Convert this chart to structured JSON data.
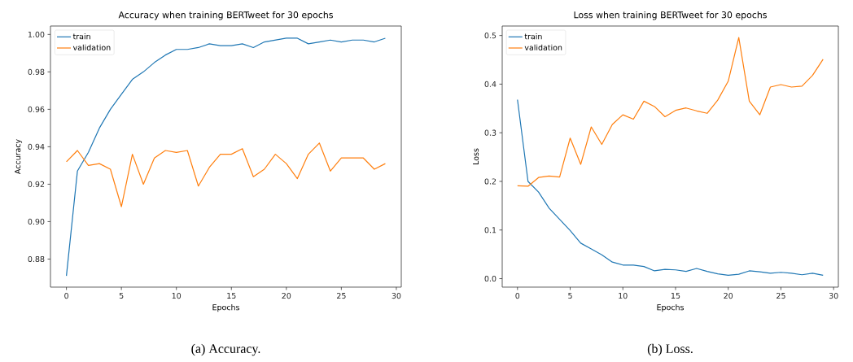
{
  "chart_data": [
    {
      "type": "line",
      "title": "Accuracy when training BERTweet for 30 epochs",
      "xlabel": "Epochs",
      "ylabel": "Accuracy",
      "legend": "top left",
      "x": [
        0,
        1,
        2,
        3,
        4,
        5,
        6,
        7,
        8,
        9,
        10,
        11,
        12,
        13,
        14,
        15,
        16,
        17,
        18,
        19,
        20,
        21,
        22,
        23,
        24,
        25,
        26,
        27,
        28,
        29
      ],
      "series": [
        {
          "name": "train",
          "color": "#1f77b4",
          "values": [
            0.871,
            0.927,
            0.937,
            0.95,
            0.96,
            0.968,
            0.976,
            0.98,
            0.985,
            0.989,
            0.992,
            0.992,
            0.993,
            0.995,
            0.994,
            0.994,
            0.995,
            0.993,
            0.996,
            0.997,
            0.998,
            0.998,
            0.995,
            0.996,
            0.997,
            0.996,
            0.997,
            0.997,
            0.996,
            0.998
          ]
        },
        {
          "name": "validation",
          "color": "#ff7f0e",
          "values": [
            0.932,
            0.938,
            0.93,
            0.931,
            0.928,
            0.908,
            0.936,
            0.92,
            0.934,
            0.938,
            0.937,
            0.938,
            0.919,
            0.929,
            0.936,
            0.936,
            0.939,
            0.924,
            0.928,
            0.936,
            0.931,
            0.923,
            0.936,
            0.942,
            0.927,
            0.934,
            0.934,
            0.934,
            0.928,
            0.931
          ]
        }
      ],
      "xlim": [
        -1.45,
        30.45
      ],
      "ylim": [
        0.865,
        1.0045
      ],
      "xticks": [
        0,
        5,
        10,
        15,
        20,
        25,
        30
      ],
      "yticks": [
        {
          "value": 0.88,
          "label": "0.88"
        },
        {
          "value": 0.9,
          "label": "0.90"
        },
        {
          "value": 0.92,
          "label": "0.92"
        },
        {
          "value": 0.94,
          "label": "0.94"
        },
        {
          "value": 0.96,
          "label": "0.96"
        },
        {
          "value": 0.98,
          "label": "0.98"
        },
        {
          "value": 1.0,
          "label": "1.00"
        }
      ],
      "annotations": [
        "(a) Accuracy."
      ]
    },
    {
      "type": "line",
      "title": "Loss when training BERTweet for 30 epochs",
      "xlabel": "Epochs",
      "ylabel": "Loss",
      "legend": "top left",
      "x": [
        0,
        1,
        2,
        3,
        4,
        5,
        6,
        7,
        8,
        9,
        10,
        11,
        12,
        13,
        14,
        15,
        16,
        17,
        18,
        19,
        20,
        21,
        22,
        23,
        24,
        25,
        26,
        27,
        28,
        29
      ],
      "series": [
        {
          "name": "train",
          "color": "#1f77b4",
          "values": [
            0.368,
            0.2,
            0.178,
            0.145,
            0.122,
            0.099,
            0.073,
            0.061,
            0.049,
            0.034,
            0.028,
            0.028,
            0.025,
            0.016,
            0.019,
            0.018,
            0.015,
            0.021,
            0.015,
            0.01,
            0.007,
            0.009,
            0.016,
            0.014,
            0.011,
            0.013,
            0.011,
            0.008,
            0.011,
            0.007
          ]
        },
        {
          "name": "validation",
          "color": "#ff7f0e",
          "values": [
            0.191,
            0.19,
            0.208,
            0.211,
            0.209,
            0.289,
            0.235,
            0.312,
            0.276,
            0.317,
            0.337,
            0.328,
            0.365,
            0.354,
            0.333,
            0.346,
            0.351,
            0.345,
            0.34,
            0.367,
            0.406,
            0.496,
            0.365,
            0.337,
            0.394,
            0.399,
            0.394,
            0.396,
            0.418,
            0.451
          ]
        }
      ],
      "xlim": [
        -1.45,
        30.45
      ],
      "ylim": [
        -0.0175,
        0.5195
      ],
      "xticks": [
        0,
        5,
        10,
        15,
        20,
        25,
        30
      ],
      "yticks": [
        {
          "value": 0,
          "label": "0.0"
        },
        {
          "value": 0.1,
          "label": "0.1"
        },
        {
          "value": 0.2,
          "label": "0.2"
        },
        {
          "value": 0.3,
          "label": "0.3"
        },
        {
          "value": 0.4,
          "label": "0.4"
        },
        {
          "value": 0.5,
          "label": "0.5"
        }
      ],
      "annotations": [
        "(b) Loss."
      ]
    }
  ]
}
